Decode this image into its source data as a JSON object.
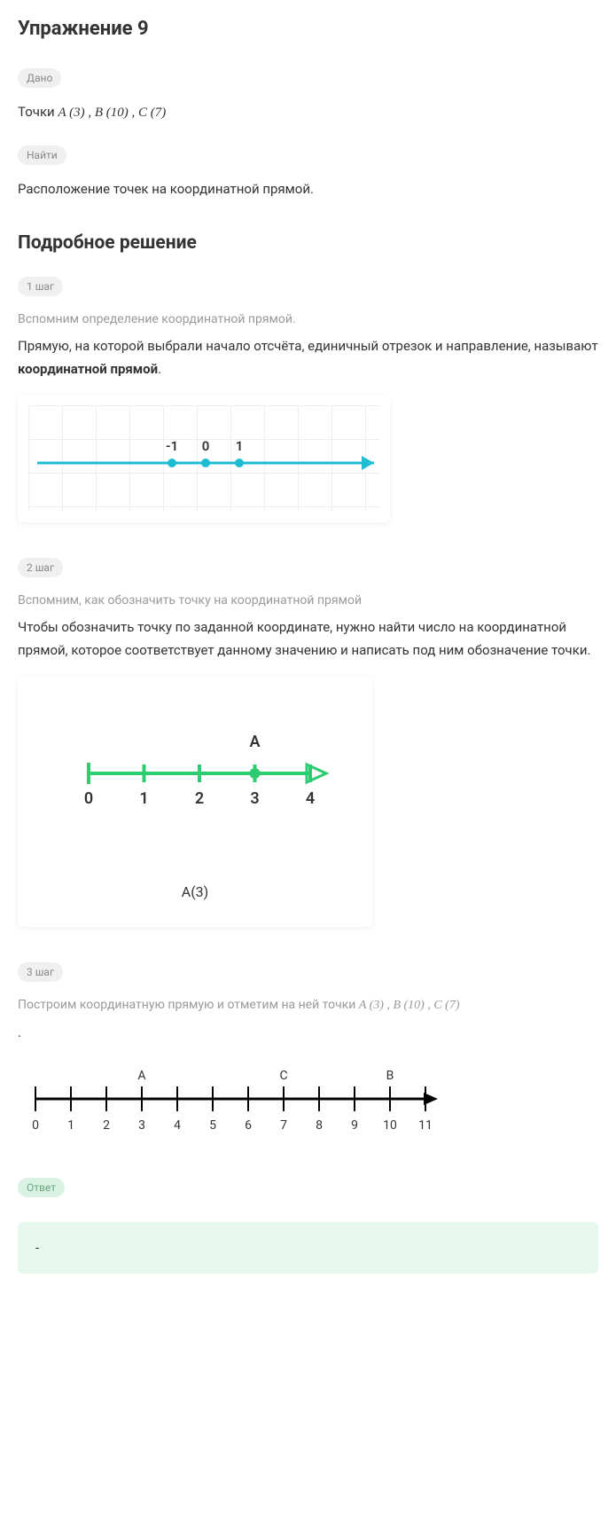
{
  "title": "Упражнение 9",
  "given": {
    "badge": "Дано",
    "prefix": "Точки ",
    "points": "A (3) ,  B (10) ,  C (7)"
  },
  "find": {
    "badge": "Найти",
    "text": "Расположение точек на координатной прямой."
  },
  "solution_title": "Подробное решение",
  "step1": {
    "badge": "1 шаг",
    "intro": "Вспомним определение координатной прямой.",
    "text_pre": "Прямую, на которой выбрали начало отсчёта, единичный отрезок и направление, называют ",
    "text_bold": "координатной прямой",
    "text_post": ".",
    "chart": {
      "type": "number-line",
      "line_color": "#1fbdd4",
      "line_width": 3,
      "point_color": "#1fbdd4",
      "point_radius": 5,
      "text_color": "#333333",
      "label_fontsize": 15,
      "ticks": [
        -1,
        0,
        1
      ],
      "tick_labels": [
        "-1",
        "0",
        "1"
      ],
      "arrow": true
    }
  },
  "step2": {
    "badge": "2 шаг",
    "intro": "Вспомним, как обозначить точку на координатной прямой",
    "text": "Чтобы обозначить точку по заданной координате, нужно найти число на координатной прямой, которое соответствует данному значению и написать под ним обозначение точки.",
    "chart": {
      "type": "number-line",
      "line_color": "#2dcc70",
      "line_width": 4,
      "point_color": "#2dcc70",
      "point_radius": 6,
      "text_color": "#333333",
      "label_fontsize": 18,
      "xmin": 0,
      "xmax": 4,
      "ticks": [
        0,
        1,
        2,
        3,
        4
      ],
      "tick_labels": [
        "0",
        "1",
        "2",
        "3",
        "4"
      ],
      "marked_point": 3,
      "marked_label": "A",
      "caption": "A(3)",
      "arrow": true
    }
  },
  "step3": {
    "badge": "3 шаг",
    "intro_pre": "Построим координатную прямую и отметим на ней точки ",
    "intro_points": "A (3) ,  B (10) ,  C (7)",
    "chart": {
      "type": "number-line",
      "line_color": "#000000",
      "line_width": 3,
      "text_color": "#333333",
      "label_fontsize": 14,
      "xmin": 0,
      "xmax": 11,
      "ticks": [
        0,
        1,
        2,
        3,
        4,
        5,
        6,
        7,
        8,
        9,
        10,
        11
      ],
      "tick_labels": [
        "0",
        "1",
        "2",
        "3",
        "4",
        "5",
        "6",
        "7",
        "8",
        "9",
        "10",
        "11"
      ],
      "points": [
        {
          "x": 3,
          "label": "A"
        },
        {
          "x": 7,
          "label": "C"
        },
        {
          "x": 10,
          "label": "B"
        }
      ],
      "arrow": true
    }
  },
  "answer": {
    "badge": "Ответ",
    "text": "-"
  }
}
